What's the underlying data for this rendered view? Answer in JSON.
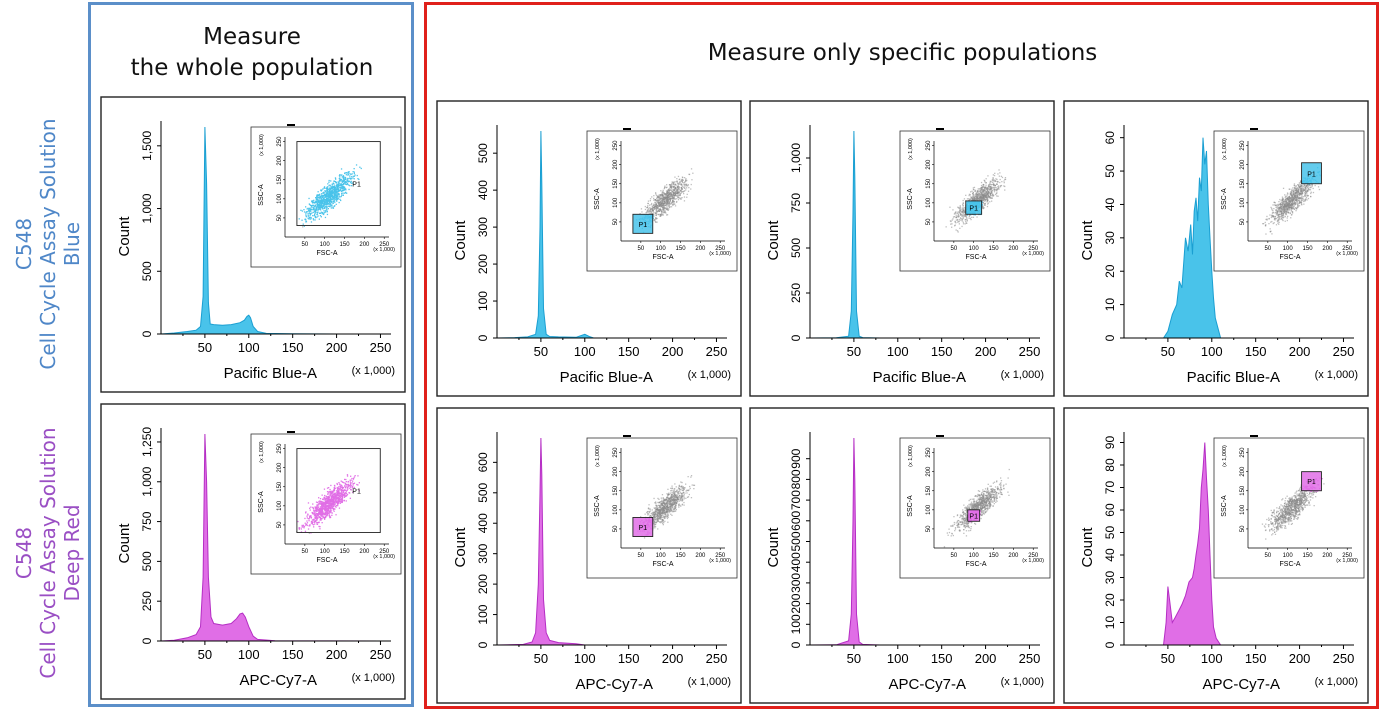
{
  "headings": {
    "whole_line1": "Measure",
    "whole_line2": "the whole population",
    "specific": "Measure only specific populations"
  },
  "row_labels": {
    "blue": {
      "product": "C548",
      "name": "Cell Cycle Assay Solution",
      "color_word": "Blue"
    },
    "deep_red": {
      "product": "C548",
      "name": "Cell Cycle Assay Solution",
      "color_word": "Deep Red"
    }
  },
  "colors": {
    "blue_frame": "#5b8fc9",
    "red_frame": "#e0201b",
    "blue_fill": "#49c3ea",
    "blue_edge": "#1a9fd2",
    "deep_red_fill": "#e06ee6",
    "deep_red_edge": "#b52ec4",
    "gray_dots": "#8a8a8a"
  },
  "chart_data": [
    {
      "type": "area",
      "row": "blue",
      "column": "whole",
      "ylabel": "Count",
      "xlabel": "Pacific Blue-A",
      "x_unit": "(x 1,000)",
      "xlim": [
        0,
        262
      ],
      "ylim": [
        0,
        1650
      ],
      "xticks": [
        50,
        100,
        150,
        200,
        250
      ],
      "xtick_labels": [
        "50",
        "100",
        "150",
        "200",
        "250"
      ],
      "yticks": [
        0,
        500,
        1000,
        1500
      ],
      "ytick_labels": [
        "0",
        "500",
        "1,000",
        "1,500"
      ],
      "x": [
        0,
        15,
        30,
        40,
        45,
        48,
        50,
        52,
        54,
        56,
        60,
        70,
        80,
        90,
        95,
        98,
        100,
        102,
        105,
        110,
        120,
        150,
        200,
        262
      ],
      "y": [
        0,
        8,
        20,
        30,
        60,
        300,
        1650,
        1200,
        250,
        80,
        75,
        70,
        75,
        90,
        110,
        140,
        150,
        130,
        60,
        20,
        5,
        2,
        0,
        0
      ],
      "inset": {
        "xlabel": "FSC-A",
        "ylabel": "SSC-A",
        "unit": "(x 1,000)",
        "xticks": [
          "50",
          "100",
          "150",
          "200",
          "250"
        ],
        "yticks": [
          "50",
          "100",
          "150",
          "200",
          "250"
        ],
        "gate_label": "P1",
        "gate": {
          "x": [
            30,
            240
          ],
          "y": [
            30,
            250
          ]
        },
        "colored": "gate"
      }
    },
    {
      "type": "area",
      "row": "blue",
      "column": "gate1",
      "ylabel": "Count",
      "xlabel": "Pacific Blue-A",
      "x_unit": "(x 1,000)",
      "xlim": [
        0,
        262
      ],
      "ylim": [
        0,
        560
      ],
      "xticks": [
        50,
        100,
        150,
        200,
        250
      ],
      "xtick_labels": [
        "50",
        "100",
        "150",
        "200",
        "250"
      ],
      "yticks": [
        0,
        100,
        200,
        300,
        400,
        500
      ],
      "ytick_labels": [
        "0",
        "100",
        "200",
        "300",
        "400",
        "500"
      ],
      "x": [
        0,
        20,
        35,
        44,
        47,
        49,
        50,
        51,
        53,
        56,
        60,
        70,
        90,
        100,
        105,
        110,
        262
      ],
      "y": [
        0,
        1,
        3,
        10,
        60,
        300,
        560,
        420,
        80,
        10,
        4,
        3,
        2,
        10,
        4,
        0,
        0
      ],
      "inset": {
        "xlabel": "FSC-A",
        "ylabel": "SSC-A",
        "unit": "(x 1,000)",
        "xticks": [
          "50",
          "100",
          "150",
          "200",
          "250"
        ],
        "yticks": [
          "50",
          "100",
          "150",
          "200",
          "250"
        ],
        "gate_label": "P1",
        "gate": {
          "x": [
            30,
            80
          ],
          "y": [
            20,
            70
          ]
        },
        "colored": "gate"
      }
    },
    {
      "type": "area",
      "row": "blue",
      "column": "gate2",
      "ylabel": "Count",
      "xlabel": "Pacific Blue-A",
      "x_unit": "(x 1,000)",
      "xlim": [
        0,
        262
      ],
      "ylim": [
        0,
        1150
      ],
      "xticks": [
        50,
        100,
        150,
        200,
        250
      ],
      "xtick_labels": [
        "50",
        "100",
        "150",
        "200",
        "250"
      ],
      "yticks": [
        0,
        250,
        500,
        750,
        1000
      ],
      "ytick_labels": [
        "0",
        "250",
        "500",
        "750",
        "1,000"
      ],
      "x": [
        0,
        30,
        44,
        47,
        49,
        50,
        51,
        53,
        56,
        60,
        80,
        262
      ],
      "y": [
        0,
        1,
        10,
        150,
        700,
        1150,
        900,
        150,
        10,
        2,
        0,
        0
      ],
      "inset": {
        "xlabel": "FSC-A",
        "ylabel": "SSC-A",
        "unit": "(x 1,000)",
        "xticks": [
          "50",
          "100",
          "150",
          "200",
          "250"
        ],
        "yticks": [
          "50",
          "100",
          "150",
          "200",
          "250"
        ],
        "gate_label": "P1",
        "gate": {
          "x": [
            80,
            120
          ],
          "y": [
            70,
            105
          ]
        },
        "colored": "gate"
      }
    },
    {
      "type": "area",
      "row": "blue",
      "column": "gate3",
      "ylabel": "Count",
      "xlabel": "Pacific Blue-A",
      "x_unit": "(x 1,000)",
      "xlim": [
        0,
        262
      ],
      "ylim": [
        0,
        62
      ],
      "xticks": [
        50,
        100,
        150,
        200,
        250
      ],
      "xtick_labels": [
        "50",
        "100",
        "150",
        "200",
        "250"
      ],
      "yticks": [
        0,
        10,
        20,
        30,
        40,
        50,
        60
      ],
      "ytick_labels": [
        "0",
        "10",
        "20",
        "30",
        "40",
        "50",
        "60"
      ],
      "x": [
        45,
        50,
        55,
        60,
        63,
        66,
        70,
        73,
        76,
        78,
        80,
        82,
        84,
        86,
        88,
        90,
        92,
        94,
        96,
        98,
        100,
        102,
        104,
        108,
        110
      ],
      "y": [
        0,
        2,
        7,
        10,
        17,
        15,
        30,
        26,
        34,
        25,
        38,
        42,
        35,
        48,
        44,
        60,
        52,
        56,
        40,
        30,
        20,
        12,
        6,
        2,
        0
      ],
      "inset": {
        "xlabel": "FSC-A",
        "ylabel": "SSC-A",
        "unit": "(x 1,000)",
        "xticks": [
          "50",
          "100",
          "150",
          "200",
          "250"
        ],
        "yticks": [
          "50",
          "100",
          "150",
          "200",
          "250"
        ],
        "gate_label": "P1",
        "gate": {
          "x": [
            135,
            185
          ],
          "y": [
            150,
            205
          ]
        },
        "colored": "gate"
      }
    },
    {
      "type": "area",
      "row": "deep_red",
      "column": "whole",
      "ylabel": "Count",
      "xlabel": "APC-Cy7-A",
      "x_unit": "(x 1,000)",
      "xlim": [
        0,
        262
      ],
      "ylim": [
        0,
        1300
      ],
      "xticks": [
        50,
        100,
        150,
        200,
        250
      ],
      "xtick_labels": [
        "50",
        "100",
        "150",
        "200",
        "250"
      ],
      "yticks": [
        0,
        250,
        500,
        750,
        1000,
        1250
      ],
      "ytick_labels": [
        "0",
        "250",
        "500",
        "750",
        "1,000",
        "1,250"
      ],
      "x": [
        0,
        15,
        30,
        40,
        45,
        48,
        50,
        52,
        54,
        57,
        60,
        70,
        80,
        86,
        90,
        93,
        96,
        100,
        105,
        110,
        130,
        262
      ],
      "y": [
        0,
        5,
        20,
        40,
        90,
        400,
        1300,
        1000,
        400,
        150,
        110,
        100,
        110,
        140,
        170,
        175,
        150,
        90,
        30,
        10,
        2,
        0
      ],
      "inset": {
        "xlabel": "FSC-A",
        "ylabel": "SSC-A",
        "unit": "(x 1,000)",
        "xticks": [
          "50",
          "100",
          "150",
          "200",
          "250"
        ],
        "yticks": [
          "50",
          "100",
          "150",
          "200",
          "250"
        ],
        "gate_label": "P1",
        "gate": {
          "x": [
            30,
            240
          ],
          "y": [
            30,
            250
          ]
        },
        "colored": "gate"
      }
    },
    {
      "type": "area",
      "row": "deep_red",
      "column": "gate1",
      "ylabel": "Count",
      "xlabel": "APC-Cy7-A",
      "x_unit": "(x 1,000)",
      "xlim": [
        0,
        262
      ],
      "ylim": [
        0,
        680
      ],
      "xticks": [
        50,
        100,
        150,
        200,
        250
      ],
      "xtick_labels": [
        "50",
        "100",
        "150",
        "200",
        "250"
      ],
      "yticks": [
        0,
        100,
        200,
        300,
        400,
        500,
        600
      ],
      "ytick_labels": [
        "0",
        "100",
        "200",
        "300",
        "400",
        "500",
        "600"
      ],
      "x": [
        0,
        30,
        40,
        44,
        47,
        49,
        50,
        51,
        53,
        56,
        60,
        70,
        90,
        100,
        262
      ],
      "y": [
        0,
        2,
        10,
        40,
        200,
        500,
        680,
        560,
        150,
        40,
        15,
        8,
        4,
        0,
        0
      ],
      "inset": {
        "xlabel": "FSC-A",
        "ylabel": "SSC-A",
        "unit": "(x 1,000)",
        "xticks": [
          "50",
          "100",
          "150",
          "200",
          "250"
        ],
        "yticks": [
          "50",
          "100",
          "150",
          "200",
          "250"
        ],
        "gate_label": "P1",
        "gate": {
          "x": [
            30,
            80
          ],
          "y": [
            30,
            80
          ]
        },
        "colored": "gate"
      }
    },
    {
      "type": "area",
      "row": "deep_red",
      "column": "gate2",
      "ylabel": "Count",
      "xlabel": "APC-Cy7-A",
      "x_unit": "(x 1,000)",
      "xlim": [
        0,
        262
      ],
      "ylim": [
        0,
        1000
      ],
      "xticks": [
        50,
        100,
        150,
        200,
        250
      ],
      "xtick_labels": [
        "50",
        "100",
        "150",
        "200",
        "250"
      ],
      "yticks": [
        0,
        100,
        200,
        300,
        400,
        500,
        600,
        700,
        800,
        900
      ],
      "ytick_labels": [
        "0",
        "100",
        "200",
        "300",
        "400",
        "500",
        "600",
        "700",
        "800",
        "900"
      ],
      "x": [
        0,
        30,
        44,
        47,
        49,
        50,
        51,
        53,
        56,
        60,
        80,
        262
      ],
      "y": [
        0,
        1,
        20,
        150,
        600,
        1000,
        800,
        150,
        15,
        3,
        0,
        0
      ],
      "inset": {
        "xlabel": "FSC-A",
        "ylabel": "SSC-A",
        "unit": "(x 1,000)",
        "xticks": [
          "50",
          "100",
          "150",
          "200",
          "250"
        ],
        "yticks": [
          "50",
          "100",
          "150",
          "200",
          "250"
        ],
        "gate_label": "P1",
        "gate": {
          "x": [
            85,
            115
          ],
          "y": [
            70,
            100
          ]
        },
        "colored": "gate"
      }
    },
    {
      "type": "area",
      "row": "deep_red",
      "column": "gate3",
      "ylabel": "Count",
      "xlabel": "APC-Cy7-A",
      "x_unit": "(x 1,000)",
      "xlim": [
        0,
        262
      ],
      "ylim": [
        0,
        92
      ],
      "xticks": [
        50,
        100,
        150,
        200,
        250
      ],
      "xtick_labels": [
        "50",
        "100",
        "150",
        "200",
        "250"
      ],
      "yticks": [
        0,
        10,
        20,
        30,
        40,
        50,
        60,
        70,
        80,
        90
      ],
      "ytick_labels": [
        "0",
        "10",
        "20",
        "30",
        "40",
        "50",
        "60",
        "70",
        "80",
        "90"
      ],
      "x": [
        45,
        48,
        50,
        52,
        55,
        58,
        62,
        66,
        70,
        74,
        78,
        80,
        82,
        84,
        86,
        88,
        90,
        92,
        94,
        96,
        98,
        100,
        102,
        105,
        110
      ],
      "y": [
        0,
        10,
        26,
        20,
        10,
        12,
        15,
        18,
        22,
        28,
        30,
        34,
        40,
        45,
        52,
        70,
        78,
        90,
        74,
        60,
        40,
        20,
        8,
        3,
        0
      ],
      "inset": {
        "xlabel": "FSC-A",
        "ylabel": "SSC-A",
        "unit": "(x 1,000)",
        "xticks": [
          "50",
          "100",
          "150",
          "200",
          "250"
        ],
        "yticks": [
          "50",
          "100",
          "150",
          "200",
          "250"
        ],
        "gate_label": "P1",
        "gate": {
          "x": [
            135,
            185
          ],
          "y": [
            150,
            200
          ]
        },
        "colored": "gate"
      }
    }
  ]
}
